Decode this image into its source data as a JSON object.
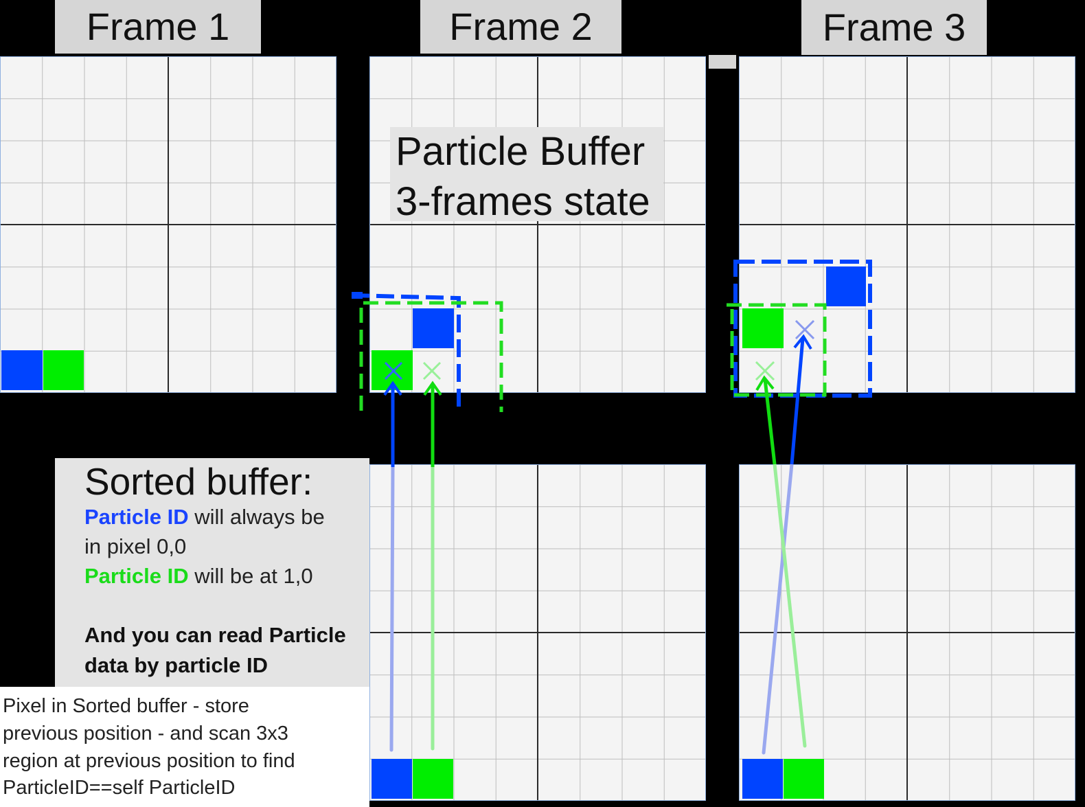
{
  "frames": {
    "frame1_label": "Frame 1",
    "frame2_label": "Frame 2",
    "frame3_label": "Frame 3"
  },
  "particle_buffer": {
    "line1": "Particle Buffer",
    "line2": "3-frames state"
  },
  "sorted_buffer": {
    "title": "Sorted buffer:",
    "blue_id": "Particle ID",
    "blue_rest": " will always be",
    "blue_rest2": "in pixel 0,0",
    "green_id": "Particle ID",
    "green_rest": " will be at 1,0",
    "bold_line1": "And you can read Particle",
    "bold_line2": "data by particle ID"
  },
  "note": {
    "line1": "Pixel in Sorted buffer - store",
    "line2": "previous position - and scan 3x3",
    "line3": "region at previous position to find",
    "line4": "ParticleID==self ParticleID"
  },
  "colors": {
    "particle_blue": "#0044ff",
    "particle_green": "#00ee00",
    "grid_background": "#f4f4f4"
  }
}
